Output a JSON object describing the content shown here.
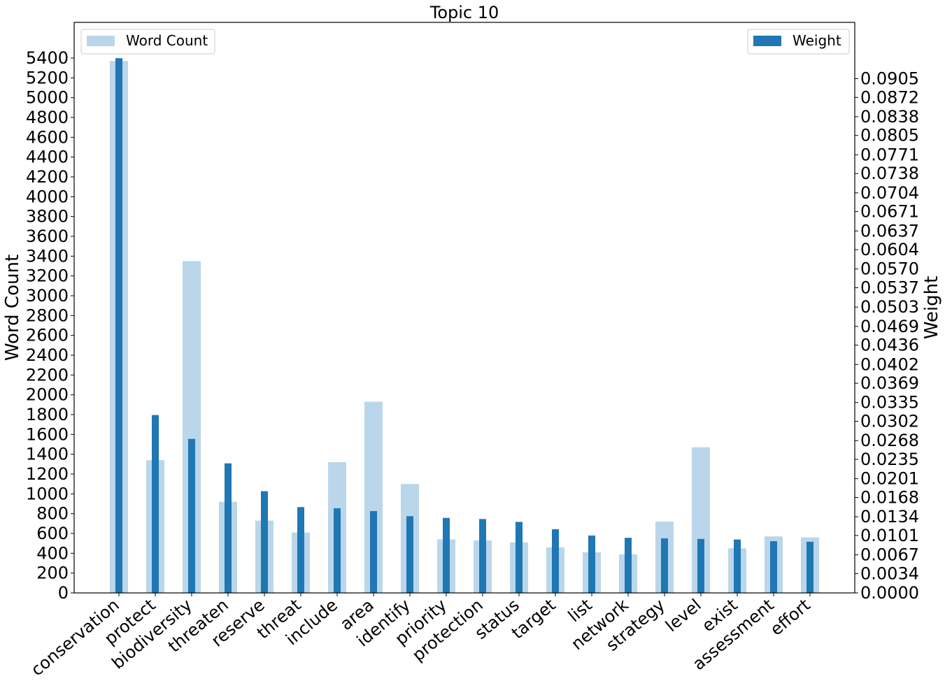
{
  "chart_data": {
    "type": "bar",
    "title": "Topic 10",
    "xlabel": "",
    "ylabel": "Word Count",
    "y2label": "Weight",
    "categories": [
      "conservation",
      "protect",
      "biodiversity",
      "threaten",
      "reserve",
      "threat",
      "include",
      "area",
      "identify",
      "priority",
      "protection",
      "status",
      "target",
      "list",
      "network",
      "strategy",
      "level",
      "exist",
      "assessment",
      "effort"
    ],
    "series": [
      {
        "name": "Word Count",
        "axis": "left",
        "color": "#bad6ea",
        "values": [
          5370,
          1340,
          3350,
          920,
          730,
          610,
          1320,
          1930,
          1100,
          540,
          530,
          510,
          460,
          410,
          390,
          720,
          1470,
          450,
          570,
          560
        ]
      },
      {
        "name": "Weight",
        "axis": "right",
        "color": "#1f77b4",
        "values": [
          0.0941,
          0.0313,
          0.0271,
          0.0228,
          0.0179,
          0.0151,
          0.0149,
          0.0144,
          0.0135,
          0.0132,
          0.013,
          0.0125,
          0.0112,
          0.0101,
          0.0097,
          0.0096,
          0.0095,
          0.0094,
          0.0091,
          0.009
        ]
      }
    ],
    "ylim": [
      0,
      5760
    ],
    "yticks": [
      0,
      200,
      400,
      600,
      800,
      1000,
      1200,
      1400,
      1600,
      1800,
      2000,
      2200,
      2400,
      2600,
      2800,
      3000,
      3200,
      3400,
      3600,
      3800,
      4000,
      4200,
      4400,
      4600,
      4800,
      5000,
      5200,
      5400
    ],
    "y2lim": [
      0,
      0.1004
    ],
    "y2ticks": [
      "0.0000",
      "0.0034",
      "0.0067",
      "0.0101",
      "0.0134",
      "0.0168",
      "0.0201",
      "0.0235",
      "0.0268",
      "0.0302",
      "0.0335",
      "0.0369",
      "0.0402",
      "0.0436",
      "0.0469",
      "0.0503",
      "0.0537",
      "0.0570",
      "0.0604",
      "0.0637",
      "0.0671",
      "0.0704",
      "0.0738",
      "0.0771",
      "0.0805",
      "0.0838",
      "0.0872",
      "0.0905"
    ],
    "legends": [
      {
        "label": "Word Count",
        "position": "top-left"
      },
      {
        "label": "Weight",
        "position": "top-right"
      }
    ],
    "grid": false
  }
}
